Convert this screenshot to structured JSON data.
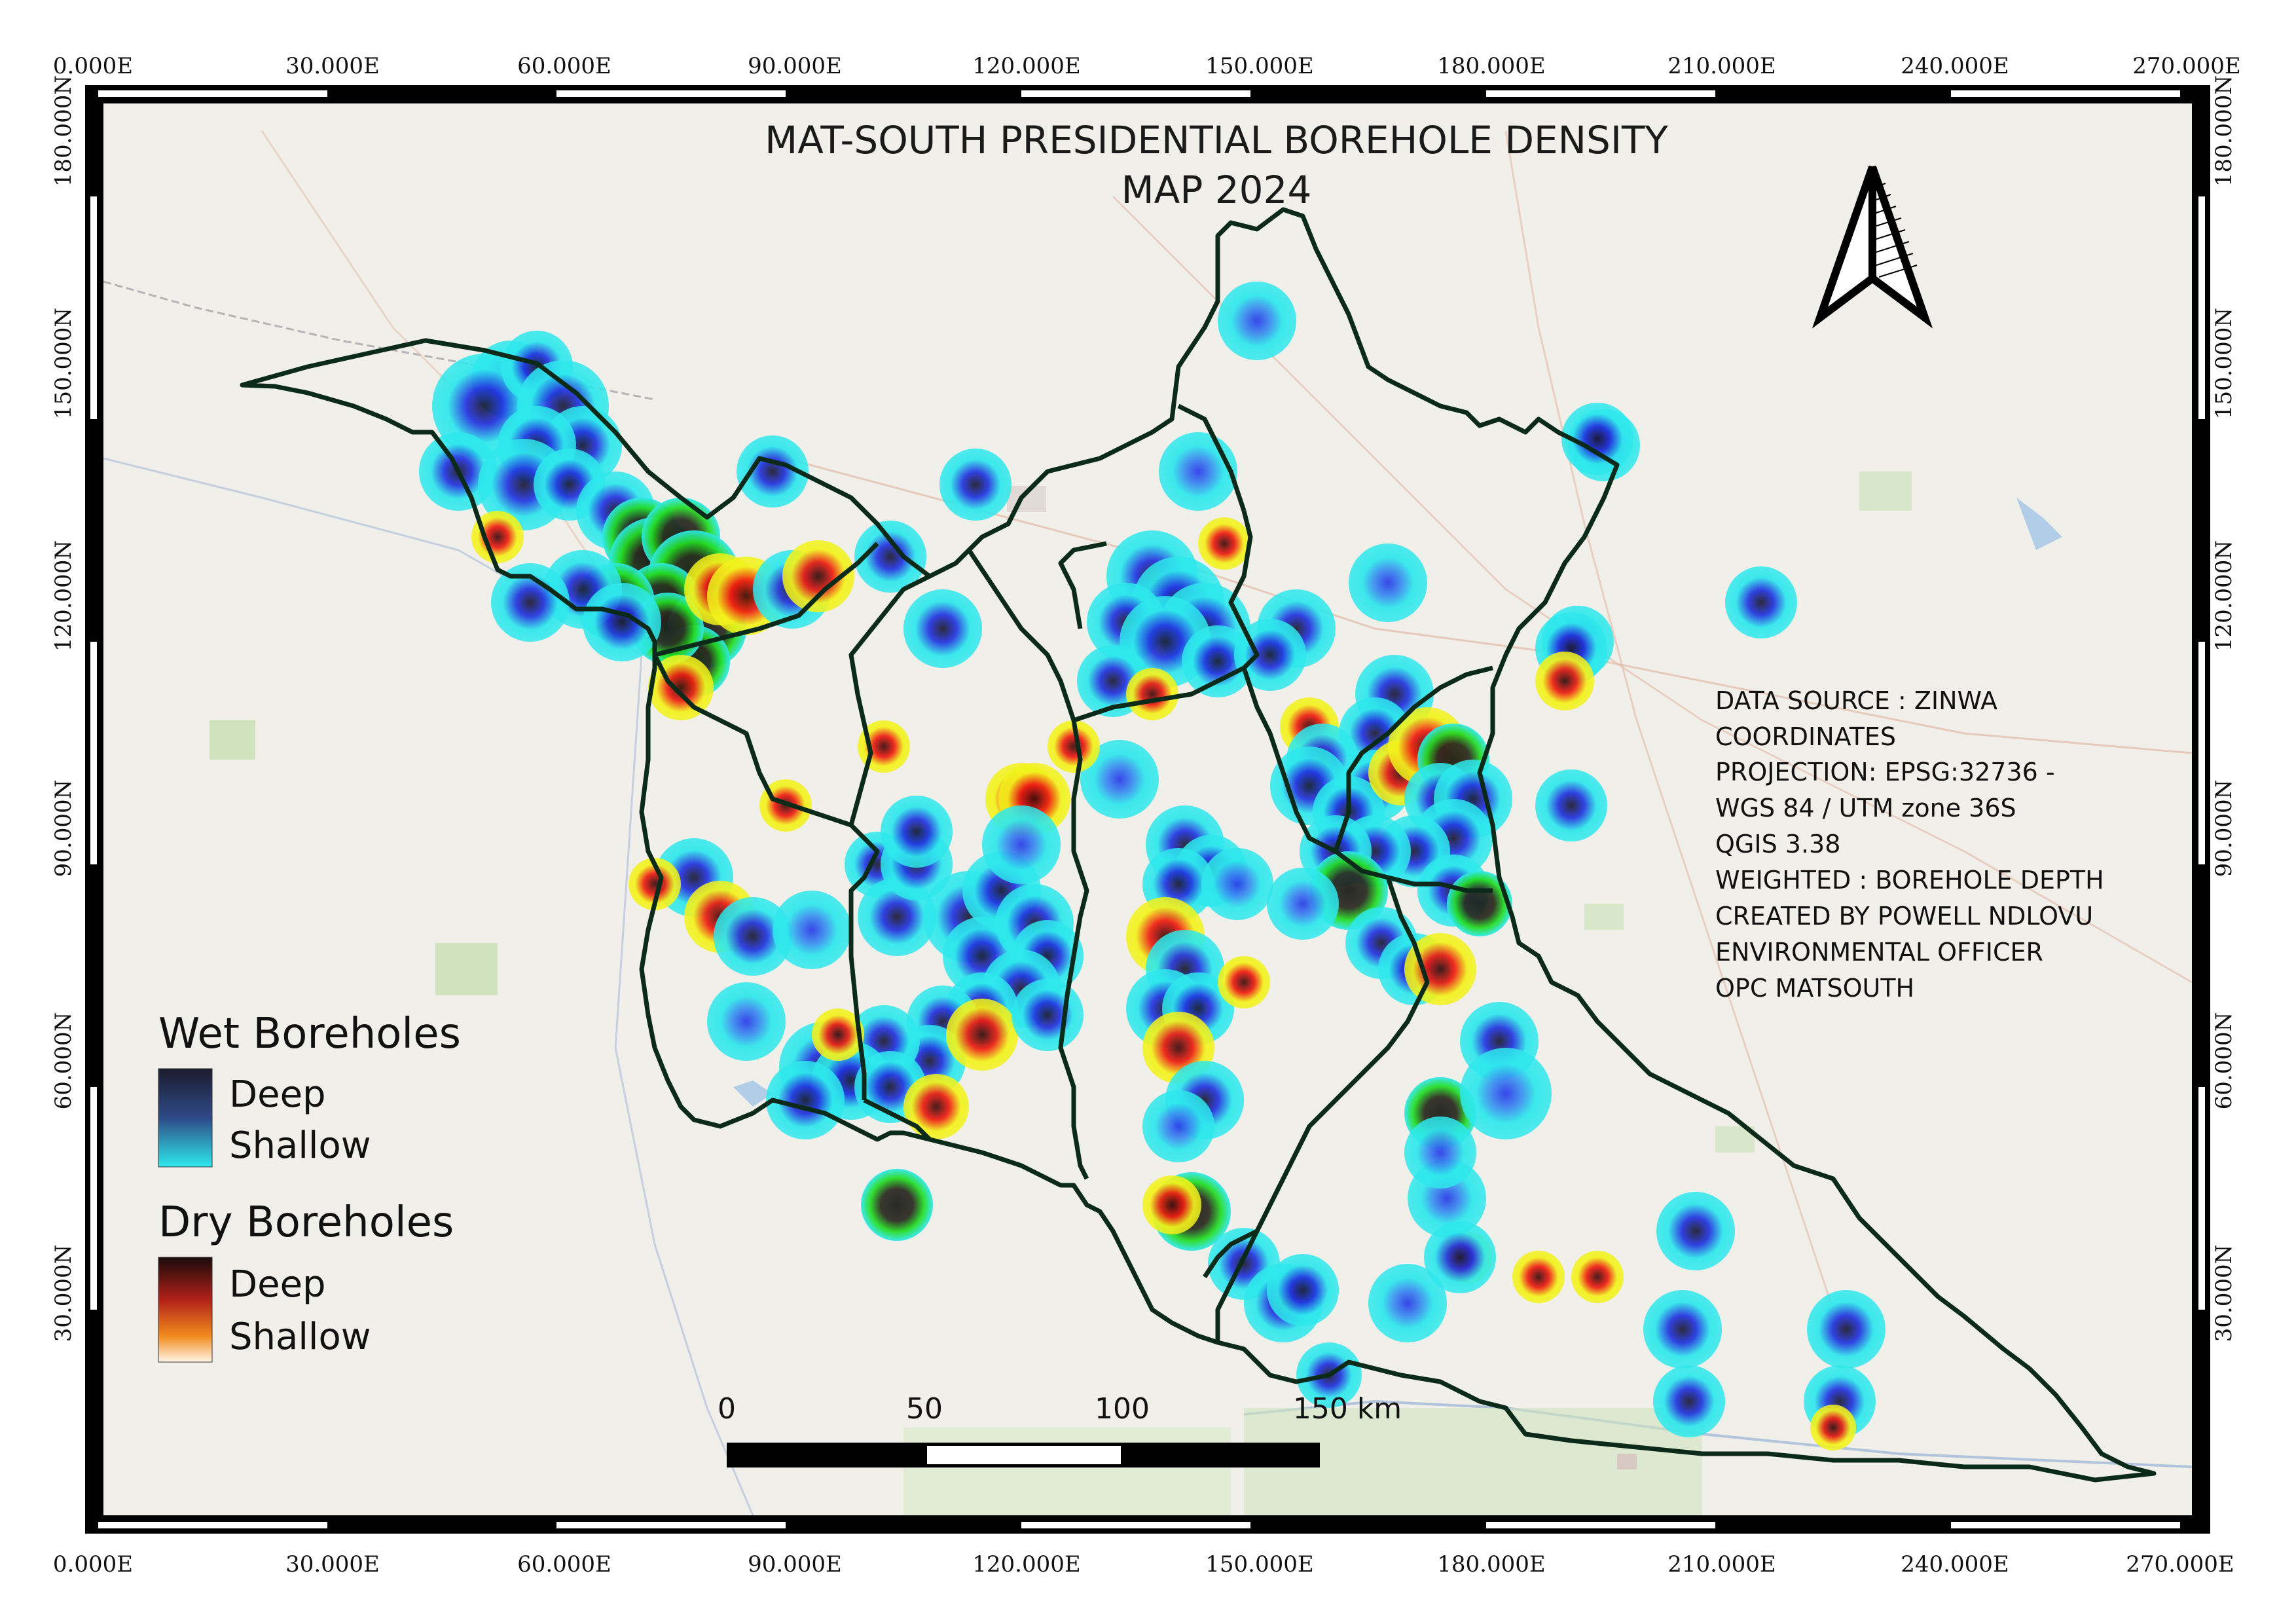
{
  "map": {
    "title_line1": "MAT-SOUTH PRESIDENTIAL BOREHOLE DENSITY",
    "title_line2": "MAP 2024",
    "info": [
      "DATA SOURCE : ZINWA",
      "COORDINATES",
      "PROJECTION: EPSG:32736 -",
      "WGS 84 / UTM zone 36S",
      "QGIS 3.38",
      "WEIGHTED : BOREHOLE DEPTH",
      "CREATED BY POWELL NDLOVU",
      "ENVIRONMENTAL OFFICER",
      "OPC MATSOUTH"
    ],
    "x_ticks": [
      "0.000E",
      "30.000E",
      "60.000E",
      "90.000E",
      "120.000E",
      "150.000E",
      "180.000E",
      "210.000E",
      "240.000E",
      "270.000E"
    ],
    "y_ticks": [
      "180.000N",
      "150.000N",
      "120.000N",
      "90.000N",
      "60.000N",
      "30.000N"
    ],
    "legend": {
      "wet_title": "Wet Boreholes",
      "wet_deep": "Deep",
      "wet_shallow": "Shallow",
      "dry_title": "Dry Boreholes",
      "dry_deep": "Deep",
      "dry_shallow": "Shallow"
    },
    "scale": {
      "labels": [
        "0",
        "50",
        "100",
        "150 km"
      ]
    },
    "north_arrow": "north-arrow-icon",
    "colors": {
      "wet_shallow": "#2ee8ec",
      "wet_mid": "#2233e0",
      "wet_deep": "#1c1c2e",
      "dry_shallow": "#f2f21c",
      "dry_mid": "#ee1c12",
      "dry_deep": "#3a0d0d",
      "boundary": "#0b2a1a",
      "basemap": "#f1efe9"
    }
  }
}
